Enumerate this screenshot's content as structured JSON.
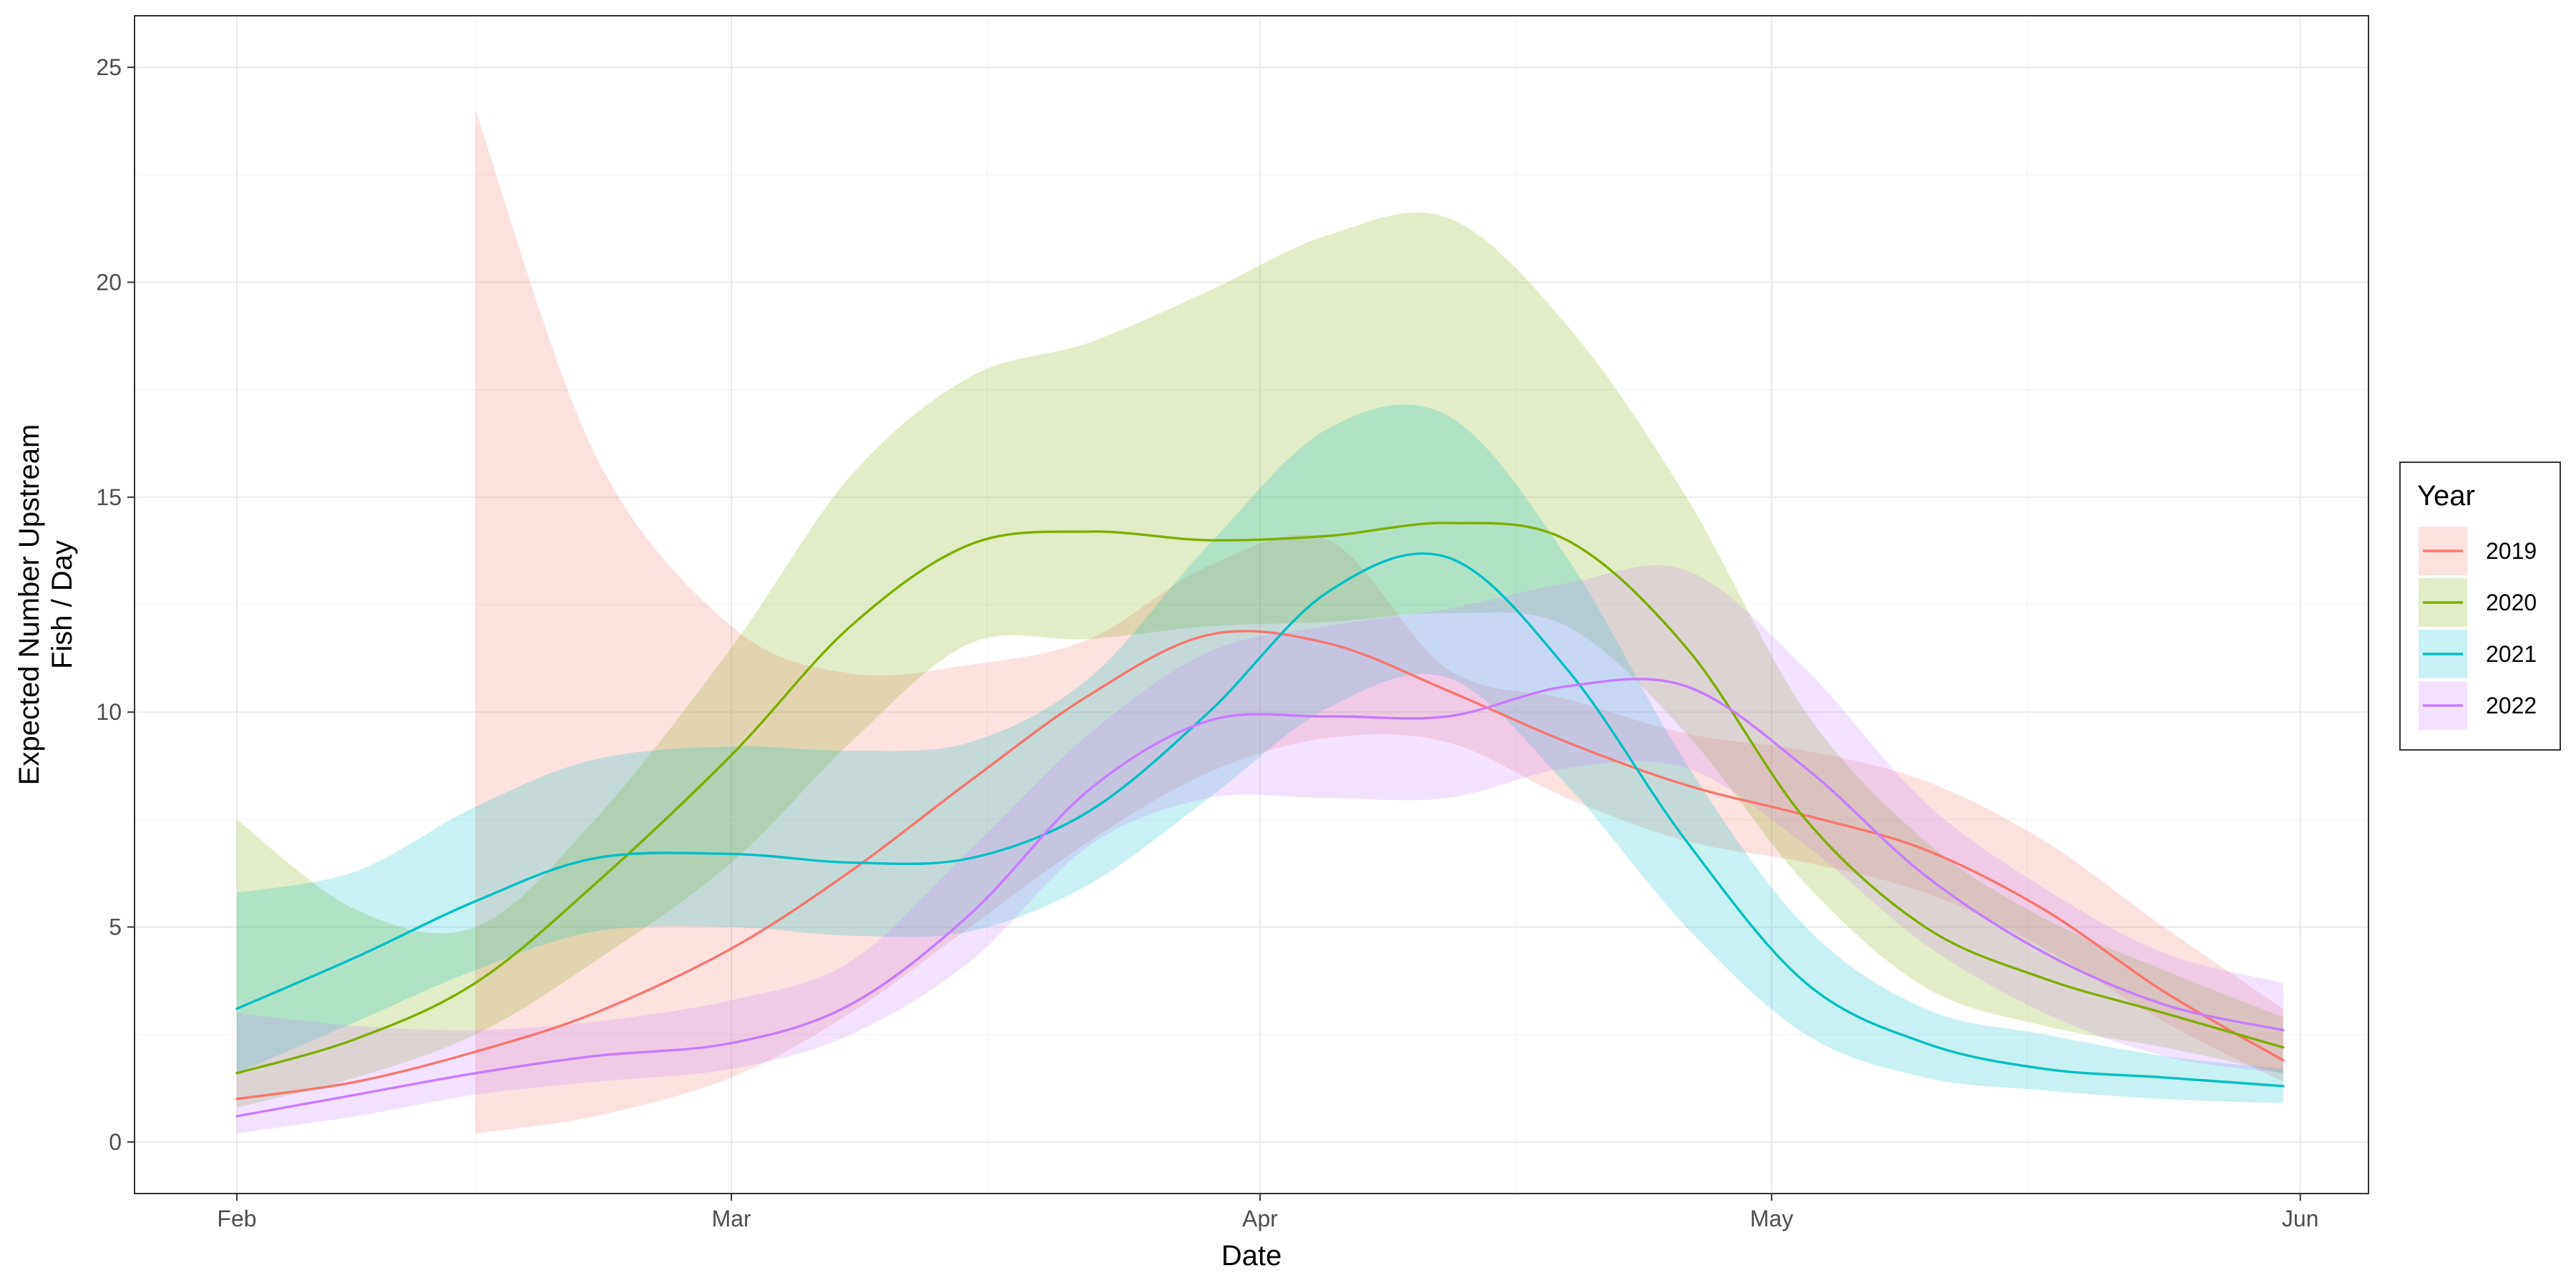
{
  "chart_data": {
    "type": "line",
    "title": "",
    "xlabel": "Date",
    "ylabel_lines": [
      "Expected Number Upstream",
      "Fish / Day"
    ],
    "x_ticks": [
      "Feb",
      "Mar",
      "Apr",
      "May",
      "Jun"
    ],
    "x_tick_dates": [
      "2000-02-01",
      "2000-03-01",
      "2000-04-01",
      "2000-05-01",
      "2000-06-01"
    ],
    "x_range": [
      "2000-01-26",
      "2000-06-05"
    ],
    "y_ticks": [
      "0",
      "5",
      "10",
      "15",
      "20",
      "25"
    ],
    "y_tick_values": [
      0,
      5,
      10,
      15,
      20,
      25
    ],
    "ylim": [
      -1.2,
      26.2
    ],
    "grid": true,
    "legend": {
      "title": "Year",
      "placement": "right"
    },
    "series": [
      {
        "name": "2019",
        "color": "#F8766D",
        "points": [
          [
            "2000-02-01",
            1.0
          ],
          [
            "2000-02-08",
            1.4
          ],
          [
            "2000-02-15",
            2.1
          ],
          [
            "2000-02-22",
            3.0
          ],
          [
            "2000-03-01",
            4.5
          ],
          [
            "2000-03-08",
            6.3
          ],
          [
            "2000-03-15",
            8.4
          ],
          [
            "2000-03-22",
            10.4
          ],
          [
            "2000-03-29",
            11.8
          ],
          [
            "2000-04-05",
            11.6
          ],
          [
            "2000-04-12",
            10.5
          ],
          [
            "2000-04-19",
            9.3
          ],
          [
            "2000-04-26",
            8.3
          ],
          [
            "2000-05-03",
            7.6
          ],
          [
            "2000-05-10",
            6.8
          ],
          [
            "2000-05-17",
            5.4
          ],
          [
            "2000-05-24",
            3.5
          ],
          [
            "2000-05-31",
            1.9
          ]
        ],
        "lower": [
          null,
          null,
          0.2,
          0.6,
          1.5,
          3.0,
          5.0,
          7.0,
          8.6,
          9.4,
          9.3,
          8.0,
          7.0,
          6.5,
          5.8,
          4.5,
          2.8,
          1.4
        ],
        "upper": [
          null,
          null,
          24.0,
          16.0,
          12.0,
          10.9,
          11.1,
          11.7,
          13.4,
          14.0,
          11.0,
          10.3,
          9.5,
          9.1,
          8.4,
          7.0,
          5.0,
          3.1
        ]
      },
      {
        "name": "2020",
        "color": "#7CAE00",
        "points": [
          [
            "2000-02-01",
            1.6
          ],
          [
            "2000-02-08",
            2.4
          ],
          [
            "2000-02-15",
            3.7
          ],
          [
            "2000-02-22",
            6.0
          ],
          [
            "2000-03-01",
            9.0
          ],
          [
            "2000-03-08",
            12.0
          ],
          [
            "2000-03-15",
            13.9
          ],
          [
            "2000-03-22",
            14.2
          ],
          [
            "2000-03-29",
            14.0
          ],
          [
            "2000-04-05",
            14.1
          ],
          [
            "2000-04-12",
            14.4
          ],
          [
            "2000-04-19",
            14.0
          ],
          [
            "2000-04-26",
            11.5
          ],
          [
            "2000-05-03",
            7.5
          ],
          [
            "2000-05-10",
            5.0
          ],
          [
            "2000-05-17",
            3.8
          ],
          [
            "2000-05-24",
            3.0
          ],
          [
            "2000-05-31",
            2.2
          ]
        ],
        "lower": [
          0.8,
          1.5,
          2.5,
          4.2,
          6.5,
          9.3,
          11.6,
          11.7,
          12.0,
          12.1,
          12.3,
          12.0,
          9.5,
          6.0,
          3.6,
          2.7,
          2.2,
          1.6
        ],
        "upper": [
          7.5,
          5.4,
          5.0,
          7.5,
          11.5,
          15.5,
          17.8,
          18.6,
          19.8,
          21.1,
          21.5,
          19.0,
          15.0,
          10.0,
          7.0,
          5.2,
          4.0,
          2.9
        ]
      },
      {
        "name": "2021",
        "color": "#00BFC4",
        "points": [
          [
            "2000-02-01",
            3.1
          ],
          [
            "2000-02-08",
            4.3
          ],
          [
            "2000-02-15",
            5.6
          ],
          [
            "2000-02-22",
            6.6
          ],
          [
            "2000-03-01",
            6.7
          ],
          [
            "2000-03-08",
            6.5
          ],
          [
            "2000-03-15",
            6.6
          ],
          [
            "2000-03-22",
            7.7
          ],
          [
            "2000-03-29",
            10.0
          ],
          [
            "2000-04-05",
            12.8
          ],
          [
            "2000-04-12",
            13.6
          ],
          [
            "2000-04-19",
            11.0
          ],
          [
            "2000-04-26",
            7.0
          ],
          [
            "2000-05-03",
            3.7
          ],
          [
            "2000-05-10",
            2.3
          ],
          [
            "2000-05-17",
            1.7
          ],
          [
            "2000-05-24",
            1.5
          ],
          [
            "2000-05-31",
            1.3
          ]
        ],
        "lower": [
          1.6,
          2.8,
          4.0,
          4.9,
          5.0,
          4.8,
          4.9,
          6.0,
          8.0,
          10.1,
          10.8,
          8.3,
          5.0,
          2.5,
          1.5,
          1.2,
          1.0,
          0.9
        ],
        "upper": [
          5.8,
          6.3,
          7.8,
          8.9,
          9.2,
          9.1,
          9.3,
          10.8,
          13.9,
          16.6,
          16.9,
          13.6,
          8.8,
          5.0,
          3.1,
          2.5,
          2.0,
          1.7
        ]
      },
      {
        "name": "2022",
        "color": "#C77CFF",
        "points": [
          [
            "2000-02-01",
            0.6
          ],
          [
            "2000-02-08",
            1.1
          ],
          [
            "2000-02-15",
            1.6
          ],
          [
            "2000-02-22",
            2.0
          ],
          [
            "2000-03-01",
            2.3
          ],
          [
            "2000-03-08",
            3.2
          ],
          [
            "2000-03-15",
            5.3
          ],
          [
            "2000-03-22",
            8.2
          ],
          [
            "2000-03-29",
            9.8
          ],
          [
            "2000-04-05",
            9.9
          ],
          [
            "2000-04-12",
            9.9
          ],
          [
            "2000-04-19",
            10.6
          ],
          [
            "2000-04-26",
            10.6
          ],
          [
            "2000-05-03",
            8.7
          ],
          [
            "2000-05-10",
            6.2
          ],
          [
            "2000-05-17",
            4.4
          ],
          [
            "2000-05-24",
            3.2
          ],
          [
            "2000-05-31",
            2.6
          ]
        ],
        "lower": [
          0.2,
          0.6,
          1.1,
          1.4,
          1.7,
          2.5,
          4.2,
          6.9,
          8.0,
          8.0,
          8.0,
          8.7,
          8.7,
          6.9,
          4.6,
          3.0,
          2.0,
          1.6
        ],
        "upper": [
          3.0,
          2.7,
          2.6,
          2.8,
          3.3,
          4.2,
          6.8,
          9.5,
          11.4,
          12.0,
          12.4,
          13.0,
          13.3,
          11.0,
          7.9,
          5.9,
          4.4,
          3.7
        ]
      }
    ]
  }
}
